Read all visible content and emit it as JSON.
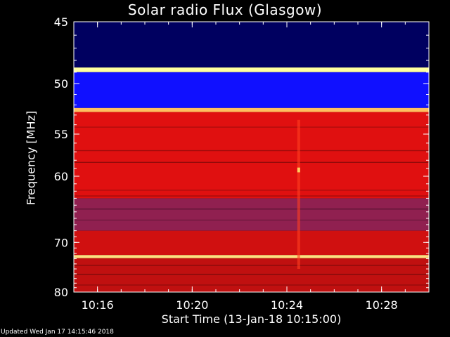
{
  "title": "Solar radio Flux (Glasgow)",
  "ylabel": "Frequency [MHz]",
  "xlabel": "Start Time (13-Jan-18 10:15:00)",
  "footer": "Updated Wed Jan 17 14:15:46 2018",
  "chart_data": {
    "type": "heatmap",
    "title": "Solar radio Flux (Glasgow)",
    "xlabel": "Start Time (13-Jan-18 10:15:00)",
    "ylabel": "Frequency [MHz]",
    "y_scale": "reciprocal",
    "y_range_mhz": [
      45,
      80
    ],
    "x_range": [
      "10:15:00",
      "10:30:00"
    ],
    "yticks": [
      45,
      50,
      55,
      60,
      70,
      80
    ],
    "xticks": [
      "10:16",
      "10:20",
      "10:24",
      "10:28"
    ],
    "colormap": [
      "#000010",
      "#0000a0",
      "#2020ff",
      "#803090",
      "#c00000",
      "#ff1010",
      "#ffb000",
      "#ffffa0"
    ],
    "frequency_bands": [
      {
        "from_mhz": 45.0,
        "to_mhz": 48.6,
        "level": "low",
        "color": "#000060"
      },
      {
        "from_mhz": 48.6,
        "to_mhz": 49.0,
        "level": "very-high",
        "color": "#ffffa0"
      },
      {
        "from_mhz": 49.0,
        "to_mhz": 52.3,
        "level": "low",
        "color": "#1010ff"
      },
      {
        "from_mhz": 52.3,
        "to_mhz": 52.7,
        "level": "very-high",
        "color": "#ffc060"
      },
      {
        "from_mhz": 52.7,
        "to_mhz": 63.0,
        "level": "high",
        "color": "#e01010"
      },
      {
        "from_mhz": 63.0,
        "to_mhz": 68.0,
        "level": "medium",
        "color": "#902050"
      },
      {
        "from_mhz": 68.0,
        "to_mhz": 72.3,
        "level": "high",
        "color": "#d01010"
      },
      {
        "from_mhz": 72.3,
        "to_mhz": 72.9,
        "level": "very-high",
        "color": "#ffe080"
      },
      {
        "from_mhz": 72.9,
        "to_mhz": 80.0,
        "level": "high",
        "color": "#c01010"
      }
    ],
    "events": [
      {
        "time": "10:24:30",
        "from_mhz": 53.5,
        "to_mhz": 75.0,
        "level": "high"
      },
      {
        "time": "10:24:30",
        "from_mhz": 58.9,
        "to_mhz": 59.5,
        "level": "very-high"
      }
    ]
  }
}
